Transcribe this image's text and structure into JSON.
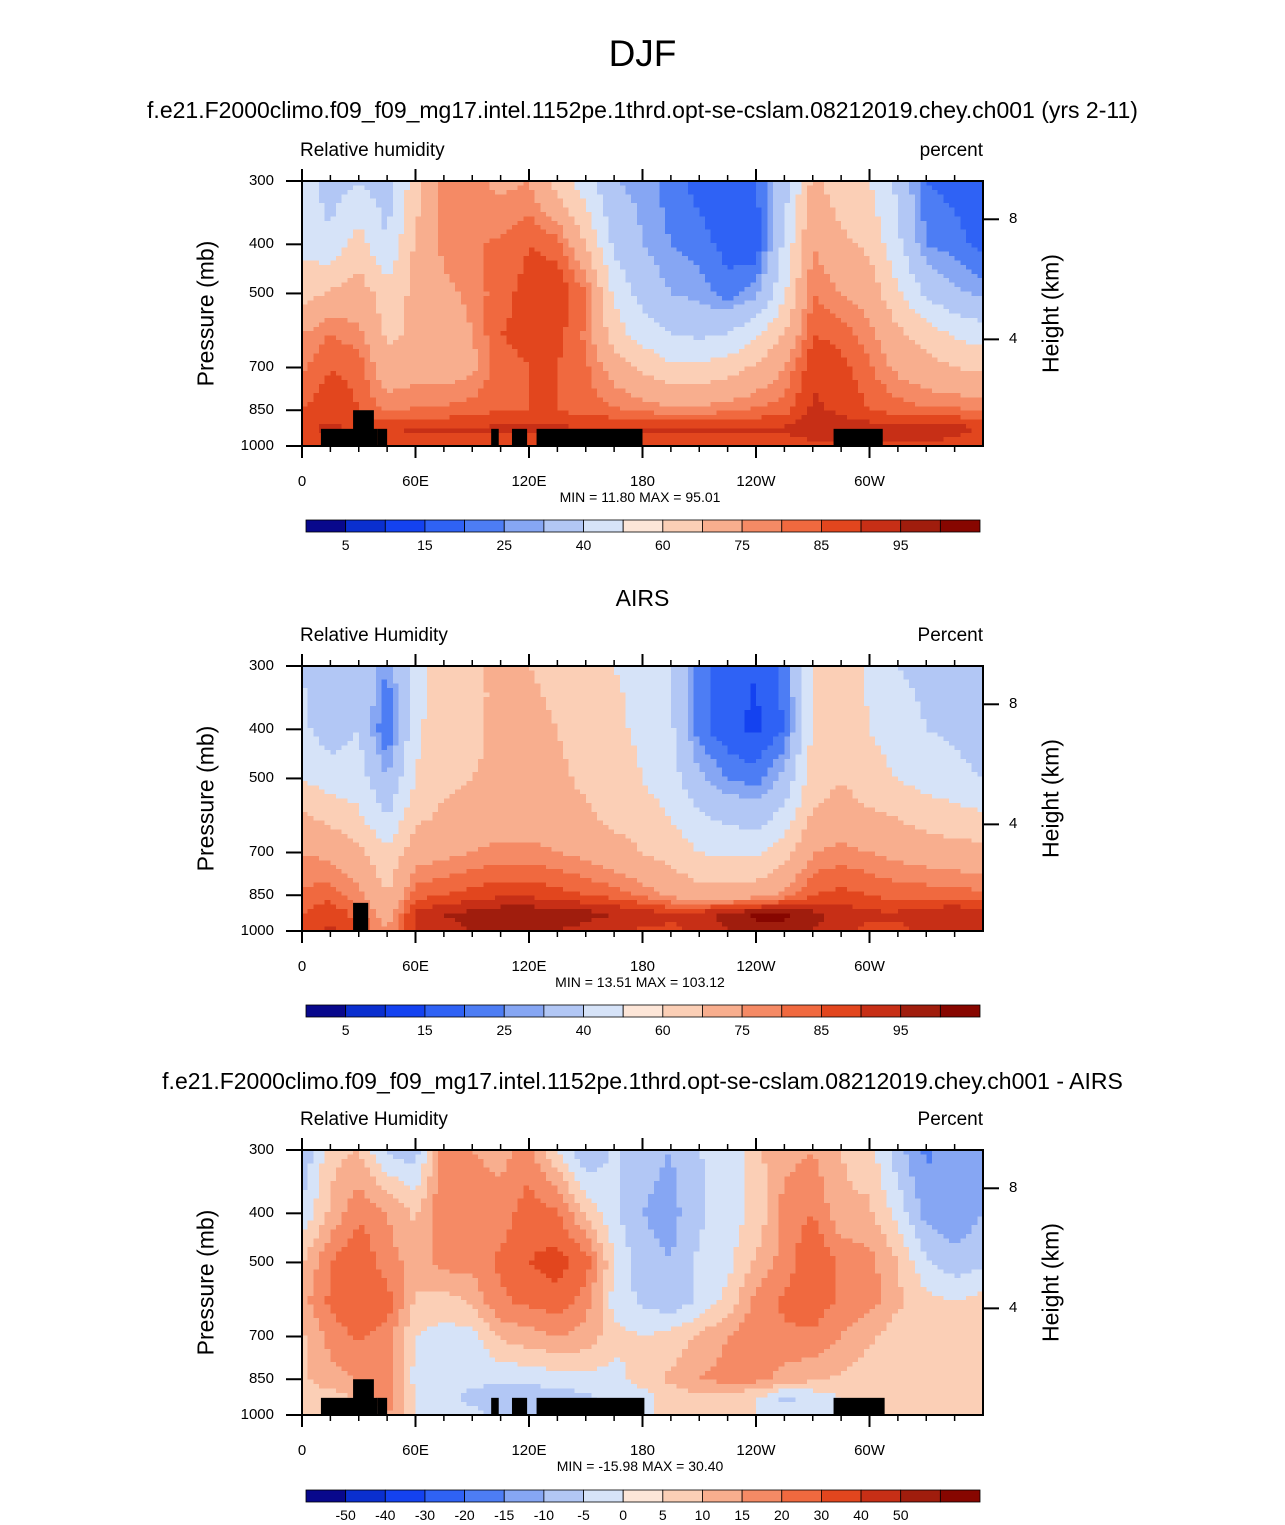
{
  "title": "DJF",
  "colors": {
    "abs_palette": [
      "#08088c",
      "#0a2fcf",
      "#1442f0",
      "#2f62f5",
      "#4d7df4",
      "#86a6f3",
      "#b2c7f5",
      "#d6e3f8",
      "#fde6d8",
      "#fbcfb6",
      "#f8ae8e",
      "#f58a65",
      "#f0693f",
      "#e2461e",
      "#c72f16",
      "#a01d0d",
      "#870600"
    ],
    "diff_palette": [
      "#08088c",
      "#0a2fcf",
      "#1442f0",
      "#2f62f5",
      "#4d7df4",
      "#86a6f3",
      "#b2c7f5",
      "#d6e3f8",
      "#fde6d8",
      "#fbcfb6",
      "#f8ae8e",
      "#f58a65",
      "#f0693f",
      "#e2461e",
      "#c72f16",
      "#a01d0d",
      "#870600"
    ],
    "land": "#000000"
  },
  "panels": [
    {
      "title": "f.e21.F2000climo.f09_f09_mg17.intel.1152pe.1thrd.opt-se-cslam.08212019.chey.ch001 (yrs 2-11)",
      "left_label": "Relative humidity",
      "right_label": "percent",
      "stats": "MIN =  11.80  MAX =  95.01",
      "colorbar_labels": [
        "5",
        "15",
        "25",
        "40",
        "60",
        "75",
        "85",
        "95"
      ],
      "palette": "abs"
    },
    {
      "title": "AIRS",
      "left_label": "Relative Humidity",
      "right_label": "Percent",
      "stats": "MIN =  13.51  MAX = 103.12",
      "colorbar_labels": [
        "5",
        "15",
        "25",
        "40",
        "60",
        "75",
        "85",
        "95"
      ],
      "palette": "abs"
    },
    {
      "title": "f.e21.F2000climo.f09_f09_mg17.intel.1152pe.1thrd.opt-se-cslam.08212019.chey.ch001 - AIRS",
      "left_label": "Relative Humidity",
      "right_label": "Percent",
      "stats": "MIN = -15.98  MAX =  30.40",
      "colorbar_labels": [
        "-50",
        "-40",
        "-30",
        "-20",
        "-15",
        "-10",
        "-5",
        "0",
        "5",
        "10",
        "15",
        "20",
        "30",
        "40",
        "50"
      ],
      "palette": "diff"
    }
  ],
  "axes": {
    "ylabel": "Pressure (mb)",
    "y2label": "Height (km)",
    "yticks": [
      "300",
      "400",
      "500",
      "700",
      "850",
      "1000"
    ],
    "y2ticks": [
      "8",
      "4"
    ],
    "xticks": [
      "0",
      "60E",
      "120E",
      "180",
      "120W",
      "60W"
    ]
  },
  "chart_data": [
    {
      "type": "heatmap",
      "title": "f.e21.F2000climo.f09_f09_mg17.intel.1152pe.1thrd.opt-se-cslam.08212019.chey.ch001 (yrs 2-11)",
      "ylabel": "Pressure (mb)",
      "y2label": "Height (km)",
      "units": "percent",
      "x_lon": [
        0,
        15,
        30,
        45,
        60,
        75,
        90,
        105,
        120,
        135,
        150,
        165,
        180,
        195,
        210,
        225,
        240,
        255,
        270,
        285,
        300,
        315,
        330,
        345,
        360
      ],
      "y_pressure": [
        300,
        400,
        500,
        600,
        700,
        850,
        925,
        1000
      ],
      "levels": [
        5,
        10,
        15,
        20,
        25,
        30,
        40,
        50,
        60,
        70,
        75,
        80,
        85,
        90,
        95
      ],
      "z": [
        [
          45,
          35,
          40,
          35,
          55,
          72,
          72,
          68,
          70,
          55,
          45,
          30,
          28,
          22,
          18,
          15,
          20,
          35,
          62,
          55,
          50,
          38,
          20,
          18,
          15
        ],
        [
          48,
          42,
          55,
          40,
          62,
          72,
          74,
          76,
          80,
          78,
          60,
          38,
          30,
          25,
          22,
          18,
          15,
          42,
          70,
          62,
          58,
          42,
          25,
          22,
          18
        ],
        [
          55,
          62,
          65,
          55,
          62,
          68,
          72,
          78,
          82,
          84,
          76,
          48,
          36,
          30,
          28,
          22,
          28,
          48,
          75,
          70,
          66,
          52,
          38,
          32,
          28
        ],
        [
          70,
          75,
          72,
          58,
          62,
          64,
          70,
          80,
          82,
          82,
          74,
          55,
          45,
          40,
          38,
          40,
          48,
          60,
          80,
          78,
          72,
          62,
          55,
          48,
          45
        ],
        [
          74,
          80,
          78,
          64,
          66,
          66,
          68,
          78,
          80,
          80,
          76,
          66,
          58,
          52,
          52,
          55,
          62,
          70,
          84,
          82,
          76,
          68,
          64,
          60,
          58
        ],
        [
          80,
          84,
          80,
          74,
          76,
          76,
          78,
          80,
          80,
          80,
          78,
          76,
          74,
          72,
          72,
          74,
          76,
          78,
          86,
          84,
          80,
          78,
          76,
          76,
          74
        ],
        [
          84,
          86,
          84,
          84,
          86,
          86,
          86,
          86,
          86,
          86,
          86,
          86,
          86,
          86,
          86,
          86,
          86,
          86,
          88,
          88,
          88,
          88,
          90,
          88,
          84
        ],
        [
          82,
          82,
          82,
          82,
          82,
          82,
          82,
          82,
          82,
          82,
          82,
          82,
          82,
          82,
          82,
          82,
          82,
          82,
          84,
          84,
          84,
          84,
          84,
          82,
          80
        ]
      ]
    },
    {
      "type": "heatmap",
      "title": "AIRS",
      "ylabel": "Pressure (mb)",
      "y2label": "Height (km)",
      "units": "Percent",
      "x_lon": [
        0,
        15,
        30,
        45,
        60,
        75,
        90,
        105,
        120,
        135,
        150,
        165,
        180,
        195,
        210,
        225,
        240,
        255,
        270,
        285,
        300,
        315,
        330,
        345,
        360
      ],
      "y_pressure": [
        300,
        400,
        500,
        600,
        700,
        850,
        925,
        1000
      ],
      "levels": [
        5,
        10,
        15,
        20,
        25,
        30,
        40,
        50,
        60,
        70,
        75,
        80,
        85,
        90,
        95
      ],
      "z": [
        [
          40,
          32,
          38,
          25,
          45,
          55,
          58,
          62,
          60,
          58,
          55,
          50,
          48,
          40,
          22,
          18,
          15,
          22,
          50,
          55,
          48,
          40,
          38,
          38,
          30
        ],
        [
          42,
          35,
          40,
          18,
          48,
          56,
          58,
          62,
          62,
          60,
          56,
          52,
          48,
          42,
          22,
          16,
          14,
          20,
          52,
          58,
          50,
          44,
          40,
          38,
          32
        ],
        [
          50,
          45,
          45,
          30,
          50,
          58,
          60,
          62,
          64,
          62,
          58,
          55,
          50,
          44,
          32,
          25,
          22,
          32,
          55,
          60,
          55,
          50,
          46,
          44,
          40
        ],
        [
          62,
          58,
          52,
          40,
          58,
          62,
          64,
          66,
          66,
          64,
          62,
          58,
          55,
          50,
          42,
          38,
          36,
          44,
          62,
          64,
          62,
          60,
          56,
          54,
          52
        ],
        [
          70,
          68,
          62,
          52,
          66,
          68,
          70,
          72,
          72,
          70,
          68,
          64,
          60,
          56,
          50,
          48,
          48,
          56,
          70,
          72,
          70,
          68,
          66,
          64,
          64
        ],
        [
          76,
          78,
          72,
          60,
          78,
          80,
          82,
          84,
          84,
          82,
          80,
          78,
          74,
          68,
          64,
          64,
          66,
          72,
          80,
          82,
          80,
          78,
          78,
          78,
          76
        ],
        [
          80,
          84,
          78,
          66,
          86,
          90,
          92,
          94,
          94,
          94,
          92,
          90,
          88,
          86,
          88,
          92,
          96,
          96,
          92,
          88,
          86,
          86,
          88,
          90,
          88
        ],
        [
          82,
          86,
          80,
          70,
          86,
          88,
          90,
          90,
          90,
          90,
          88,
          86,
          84,
          84,
          86,
          90,
          94,
          94,
          90,
          86,
          84,
          84,
          86,
          88,
          86
        ]
      ]
    },
    {
      "type": "heatmap",
      "title": "f.e21.F2000climo.f09_f09_mg17.intel.1152pe.1thrd.opt-se-cslam.08212019.chey.ch001 - AIRS",
      "ylabel": "Pressure (mb)",
      "y2label": "Height (km)",
      "units": "Percent",
      "x_lon": [
        0,
        15,
        30,
        45,
        60,
        75,
        90,
        105,
        120,
        135,
        150,
        165,
        180,
        195,
        210,
        225,
        240,
        255,
        270,
        285,
        300,
        315,
        330,
        345,
        360
      ],
      "y_pressure": [
        300,
        400,
        500,
        600,
        700,
        850,
        925,
        1000
      ],
      "levels": [
        -50,
        -40,
        -30,
        -20,
        -15,
        -10,
        -5,
        0,
        5,
        10,
        15,
        20,
        30,
        40,
        50
      ],
      "z": [
        [
          -10,
          3,
          5,
          -6,
          -8,
          12,
          10,
          8,
          12,
          0,
          -10,
          -4,
          -8,
          -10,
          -5,
          -4,
          4,
          8,
          10,
          5,
          2,
          -8,
          -16,
          -12,
          -10
        ],
        [
          -4,
          6,
          14,
          10,
          4,
          15,
          14,
          12,
          18,
          16,
          4,
          -4,
          -10,
          -12,
          -6,
          -2,
          1,
          12,
          15,
          6,
          6,
          -2,
          -12,
          -14,
          -10
        ],
        [
          4,
          15,
          20,
          12,
          8,
          12,
          12,
          16,
          20,
          22,
          18,
          0,
          -8,
          -10,
          -4,
          -2,
          6,
          12,
          20,
          14,
          12,
          5,
          -4,
          -8,
          -6
        ],
        [
          8,
          16,
          20,
          18,
          4,
          2,
          6,
          14,
          16,
          18,
          12,
          -2,
          -6,
          -8,
          -4,
          2,
          12,
          16,
          18,
          14,
          12,
          6,
          2,
          0,
          2
        ],
        [
          4,
          12,
          16,
          12,
          0,
          -2,
          -2,
          6,
          8,
          10,
          8,
          2,
          0,
          2,
          6,
          10,
          14,
          14,
          14,
          10,
          6,
          2,
          1,
          0,
          0
        ],
        [
          4,
          8,
          10,
          12,
          -2,
          -4,
          -4,
          -4,
          -4,
          -2,
          -2,
          -2,
          2,
          6,
          10,
          12,
          12,
          8,
          6,
          4,
          2,
          2,
          0,
          0,
          0
        ],
        [
          4,
          2,
          6,
          14,
          0,
          -4,
          -6,
          -8,
          -8,
          -8,
          -6,
          -4,
          -2,
          2,
          4,
          2,
          0,
          -6,
          -4,
          0,
          2,
          2,
          2,
          0,
          0
        ],
        [
          2,
          0,
          4,
          10,
          0,
          -4,
          -4,
          -6,
          -6,
          -6,
          -4,
          -2,
          0,
          0,
          0,
          0,
          0,
          -2,
          -4,
          -2,
          0,
          0,
          0,
          0,
          0
        ]
      ]
    }
  ]
}
